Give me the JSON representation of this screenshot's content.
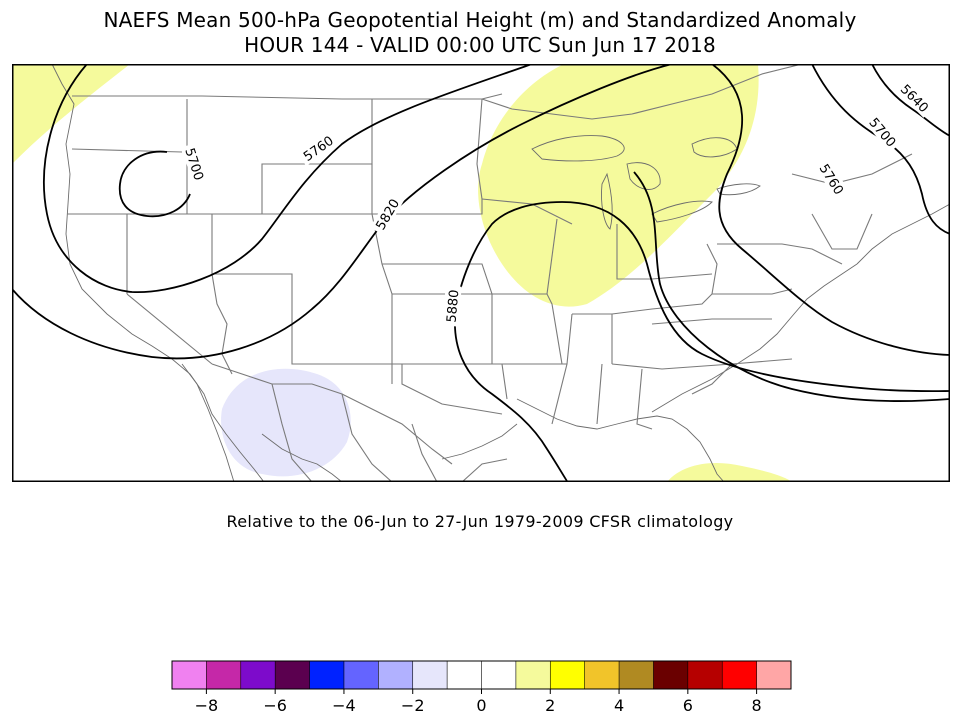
{
  "title": {
    "line1": "NAEFS Mean 500-hPa Geopotential Height (m) and Standardized Anomaly",
    "line2": "HOUR 144 - VALID 00:00 UTC Sun Jun 17 2018"
  },
  "map": {
    "region": "North America (CONUS)",
    "contour_labels": [
      "5640",
      "5700",
      "5700",
      "5760",
      "5760",
      "5820",
      "5880"
    ],
    "anomaly_colors": {
      "positive_2": "#f5fa9c",
      "negative_2": "#e6e6fb"
    }
  },
  "note": "Relative to the 06-Jun to 27-Jun 1979-2009 CFSR climatology",
  "colorbar": {
    "colors": [
      "#f081f0",
      "#c528a8",
      "#7d0bcb",
      "#5b004f",
      "#0022ff",
      "#6464ff",
      "#b1b1ff",
      "#e6e6fb",
      "#ffffff",
      "#ffffff",
      "#f5fa9c",
      "#ffff00",
      "#f1c42a",
      "#b08a22",
      "#6a0000",
      "#b60000",
      "#ff0000",
      "#ffa6a6"
    ],
    "tick_labels": [
      "−8",
      "−6",
      "−4",
      "−2",
      "0",
      "2",
      "4",
      "6",
      "8"
    ]
  }
}
